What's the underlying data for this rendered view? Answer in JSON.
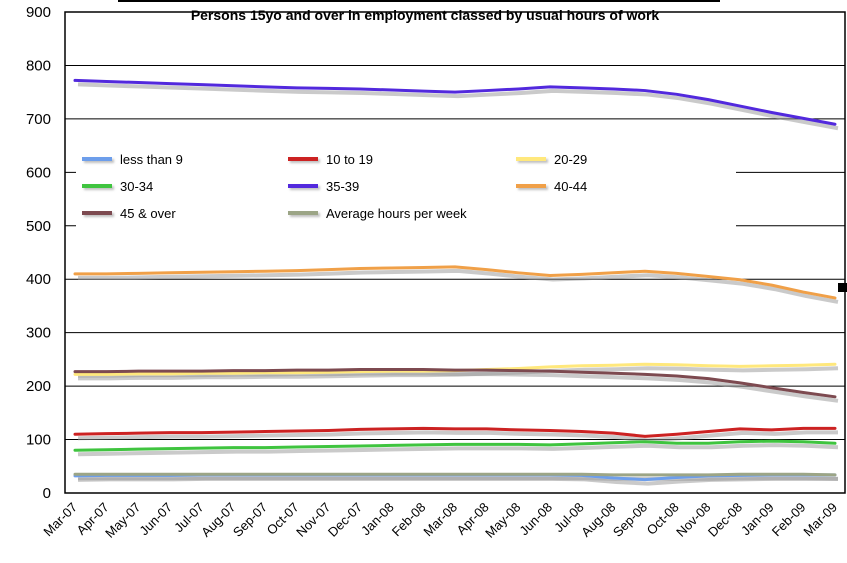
{
  "chart_data": {
    "type": "line",
    "title": "Persons 15yo and over in employment classed by usual hours of work",
    "xlabel": "",
    "ylabel": "",
    "ylim": [
      0,
      900
    ],
    "ytick": 100,
    "grid": "horizontal",
    "legend_position": "inside-upper-left",
    "categories": [
      "Mar-07",
      "Apr-07",
      "May-07",
      "Jun-07",
      "Jul-07",
      "Aug-07",
      "Sep-07",
      "Oct-07",
      "Nov-07",
      "Dec-07",
      "Jan-08",
      "Feb-08",
      "Mar-08",
      "Apr-08",
      "May-08",
      "Jun-08",
      "Jul-08",
      "Aug-08",
      "Sep-08",
      "Oct-08",
      "Nov-08",
      "Dec-08",
      "Jan-09",
      "Feb-09",
      "Mar-09"
    ],
    "series": [
      {
        "name": "less than 9",
        "color": "#6D9EEB",
        "values": [
          32,
          33,
          33,
          33,
          34,
          34,
          34,
          34,
          34,
          34,
          34,
          34,
          34,
          34,
          34,
          34,
          33,
          28,
          25,
          29,
          32,
          33,
          34,
          34,
          34
        ]
      },
      {
        "name": "10 to 19",
        "color": "#CC2222",
        "values": [
          110,
          111,
          112,
          113,
          113,
          114,
          115,
          116,
          117,
          119,
          120,
          121,
          120,
          120,
          118,
          117,
          115,
          112,
          106,
          110,
          115,
          120,
          118,
          121,
          121
        ]
      },
      {
        "name": "20-29",
        "color": "#FFE87C",
        "values": [
          222,
          222,
          223,
          223,
          224,
          224,
          225,
          225,
          226,
          227,
          228,
          228,
          229,
          231,
          233,
          236,
          238,
          239,
          241,
          240,
          238,
          237,
          238,
          239,
          241
        ]
      },
      {
        "name": "30-34",
        "color": "#3FC43F",
        "values": [
          80,
          81,
          82,
          83,
          84,
          85,
          85,
          86,
          87,
          88,
          89,
          90,
          91,
          91,
          91,
          90,
          92,
          94,
          96,
          93,
          93,
          96,
          97,
          96,
          93
        ]
      },
      {
        "name": "35-39",
        "color": "#5229DD",
        "values": [
          772,
          770,
          768,
          766,
          764,
          762,
          760,
          758,
          757,
          756,
          754,
          752,
          750,
          753,
          756,
          760,
          758,
          756,
          753,
          746,
          736,
          724,
          712,
          701,
          690
        ]
      },
      {
        "name": "40-44",
        "color": "#F0A048",
        "values": [
          410,
          410,
          411,
          412,
          413,
          414,
          415,
          416,
          418,
          420,
          421,
          422,
          423,
          418,
          412,
          407,
          409,
          412,
          415,
          411,
          405,
          399,
          389,
          376,
          365
        ]
      },
      {
        "name": "45 & over",
        "color": "#7D4A50",
        "values": [
          227,
          227,
          228,
          228,
          228,
          229,
          229,
          230,
          230,
          231,
          231,
          231,
          230,
          230,
          229,
          228,
          226,
          224,
          222,
          219,
          214,
          206,
          197,
          188,
          180
        ]
      },
      {
        "name": "Average hours per week",
        "color": "#9CA586",
        "values": [
          35,
          35,
          35,
          35,
          35,
          35,
          35,
          35,
          35,
          35,
          35,
          35,
          35,
          35,
          35,
          35,
          35,
          34,
          34,
          34,
          34,
          35,
          35,
          35,
          34
        ]
      }
    ]
  }
}
